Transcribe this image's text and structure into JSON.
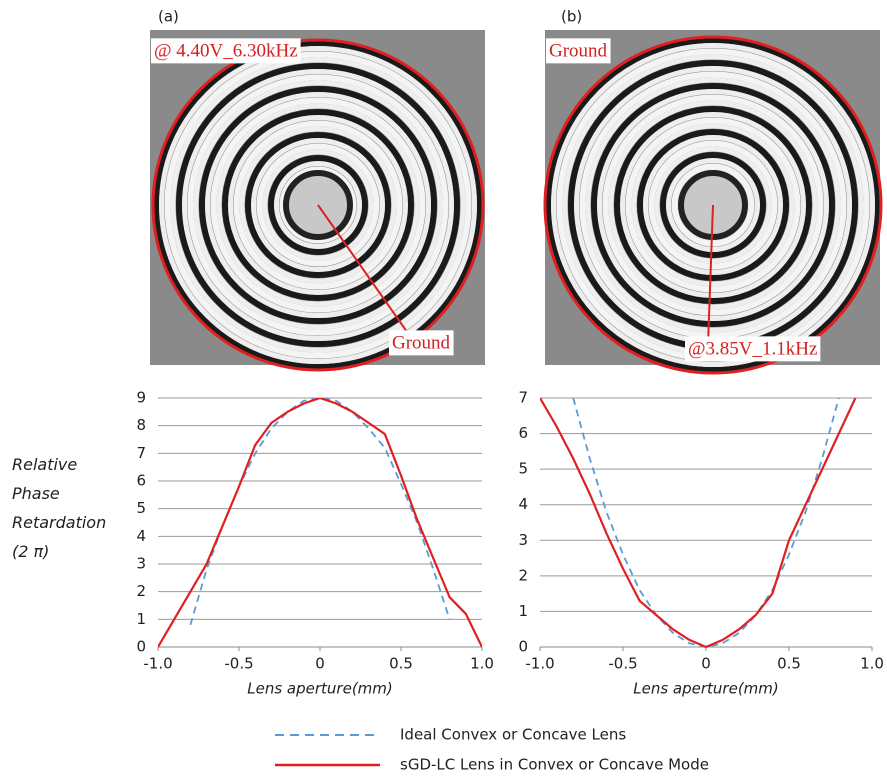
{
  "images": [
    {
      "label": "(a)",
      "top_text": "@ 4.40V_6.30kHz",
      "bottom_text": "Ground"
    },
    {
      "label": "(b)",
      "top_text": "Ground",
      "bottom_text": "@3.85V_1.1kHz"
    }
  ],
  "chart_data": [
    {
      "type": "line",
      "ylabel": "Relative Phase Retardation (2 π)",
      "xlabel": "Lens aperture(mm)",
      "x": [
        -1,
        -0.9,
        -0.8,
        -0.7,
        -0.6,
        -0.5,
        -0.4,
        -0.3,
        -0.2,
        -0.1,
        0,
        0.1,
        0.2,
        0.3,
        0.4,
        0.5,
        0.6,
        0.7,
        0.8,
        0.9,
        1
      ],
      "series": [
        {
          "name": "Ideal Convex or Concave Lens",
          "color": "#5b9bd5",
          "dashed": true,
          "values": [
            null,
            null,
            0.8,
            2.8,
            4.4,
            5.8,
            7.0,
            7.9,
            8.5,
            8.9,
            9,
            8.9,
            8.5,
            7.9,
            7.2,
            5.9,
            4.5,
            2.8,
            1.0,
            null,
            null
          ]
        },
        {
          "name": "sGD-LC Lens in Convex or Concave Mode",
          "color": "#e02020",
          "dashed": false,
          "values": [
            0,
            1.0,
            2.0,
            3.0,
            4.4,
            5.8,
            7.3,
            8.1,
            8.5,
            8.8,
            9.0,
            8.8,
            8.5,
            8.1,
            7.7,
            6.2,
            4.6,
            3.2,
            1.8,
            1.2,
            0
          ]
        }
      ],
      "xlim": [
        -1,
        1
      ],
      "xticks": [
        {
          "value": -1,
          "label": "-1.0"
        },
        {
          "value": -0.5,
          "label": "-0.5"
        },
        0,
        {
          "value": 0.5,
          "label": "0.5"
        },
        {
          "value": 1,
          "label": "1.0"
        }
      ],
      "ylim": [
        0,
        9
      ],
      "yticks": [
        0,
        1,
        2,
        3,
        4,
        5,
        6,
        7,
        8,
        9
      ],
      "grid": true
    },
    {
      "type": "line",
      "xlabel": "Lens aperture(mm)",
      "x": [
        -1,
        -0.9,
        -0.8,
        -0.7,
        -0.6,
        -0.5,
        -0.4,
        -0.3,
        -0.2,
        -0.1,
        0,
        0.1,
        0.2,
        0.3,
        0.4,
        0.5,
        0.6,
        0.7,
        0.8,
        0.9,
        1
      ],
      "series": [
        {
          "color": "#5b9bd5",
          "dashed": true,
          "values": [
            null,
            null,
            7,
            5.3,
            3.8,
            2.6,
            1.6,
            0.9,
            0.4,
            0.1,
            0,
            0.1,
            0.4,
            0.9,
            1.6,
            2.6,
            3.8,
            5.3,
            7,
            null,
            null
          ]
        },
        {
          "color": "#e02020",
          "dashed": false,
          "values": [
            7,
            6.2,
            5.3,
            4.3,
            3.2,
            2.2,
            1.3,
            0.9,
            0.5,
            0.2,
            0,
            0.2,
            0.5,
            0.9,
            1.5,
            3.0,
            4.0,
            5.0,
            6.0,
            7.0,
            null
          ]
        }
      ],
      "xlim": [
        -1,
        1
      ],
      "xticks": [
        {
          "value": -1,
          "label": "-1.0"
        },
        {
          "value": -0.5,
          "label": "-0.5"
        },
        0,
        {
          "value": 0.5,
          "label": "0.5"
        },
        {
          "value": 1,
          "label": "1.0"
        }
      ],
      "ylim": [
        0,
        7
      ],
      "yticks": [
        0,
        1,
        2,
        3,
        4,
        5,
        6,
        7
      ],
      "grid": true
    }
  ]
}
